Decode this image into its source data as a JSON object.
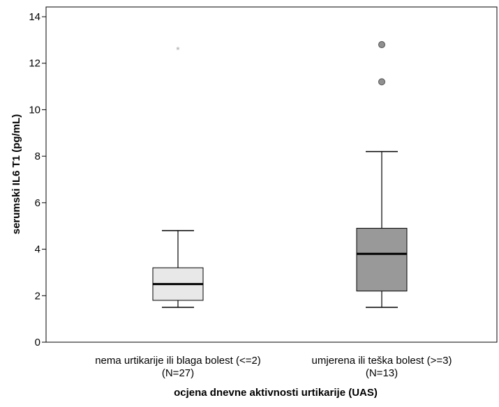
{
  "chart_data": {
    "type": "boxplot",
    "title": "",
    "xlabel": "ocjena dnevne aktivnosti urtikarije (UAS)",
    "ylabel": "serumski IL6 T1 (pg/mL)",
    "ylim": [
      0,
      14
    ],
    "yticks": [
      0,
      2,
      4,
      6,
      8,
      10,
      12,
      14
    ],
    "grid": false,
    "legend": "none",
    "categories": [
      {
        "label_line1": "nema urtikarije ili blaga bolest (<=2)",
        "label_line2": "(N=27)",
        "n": 27,
        "whisker_low": 1.5,
        "q1": 1.8,
        "median": 2.5,
        "q3": 3.2,
        "whisker_high": 4.8,
        "box_color": "#e8e8e8",
        "outliers": [],
        "extremes": [
          12.6
        ]
      },
      {
        "label_line1": "umjerena ili teška bolest (>=3)",
        "label_line2": "(N=13)",
        "n": 13,
        "whisker_low": 1.5,
        "q1": 2.2,
        "median": 3.8,
        "q3": 4.9,
        "whisker_high": 8.2,
        "box_color": "#999999",
        "outliers": [
          11.2,
          12.8
        ],
        "extremes": []
      }
    ]
  }
}
